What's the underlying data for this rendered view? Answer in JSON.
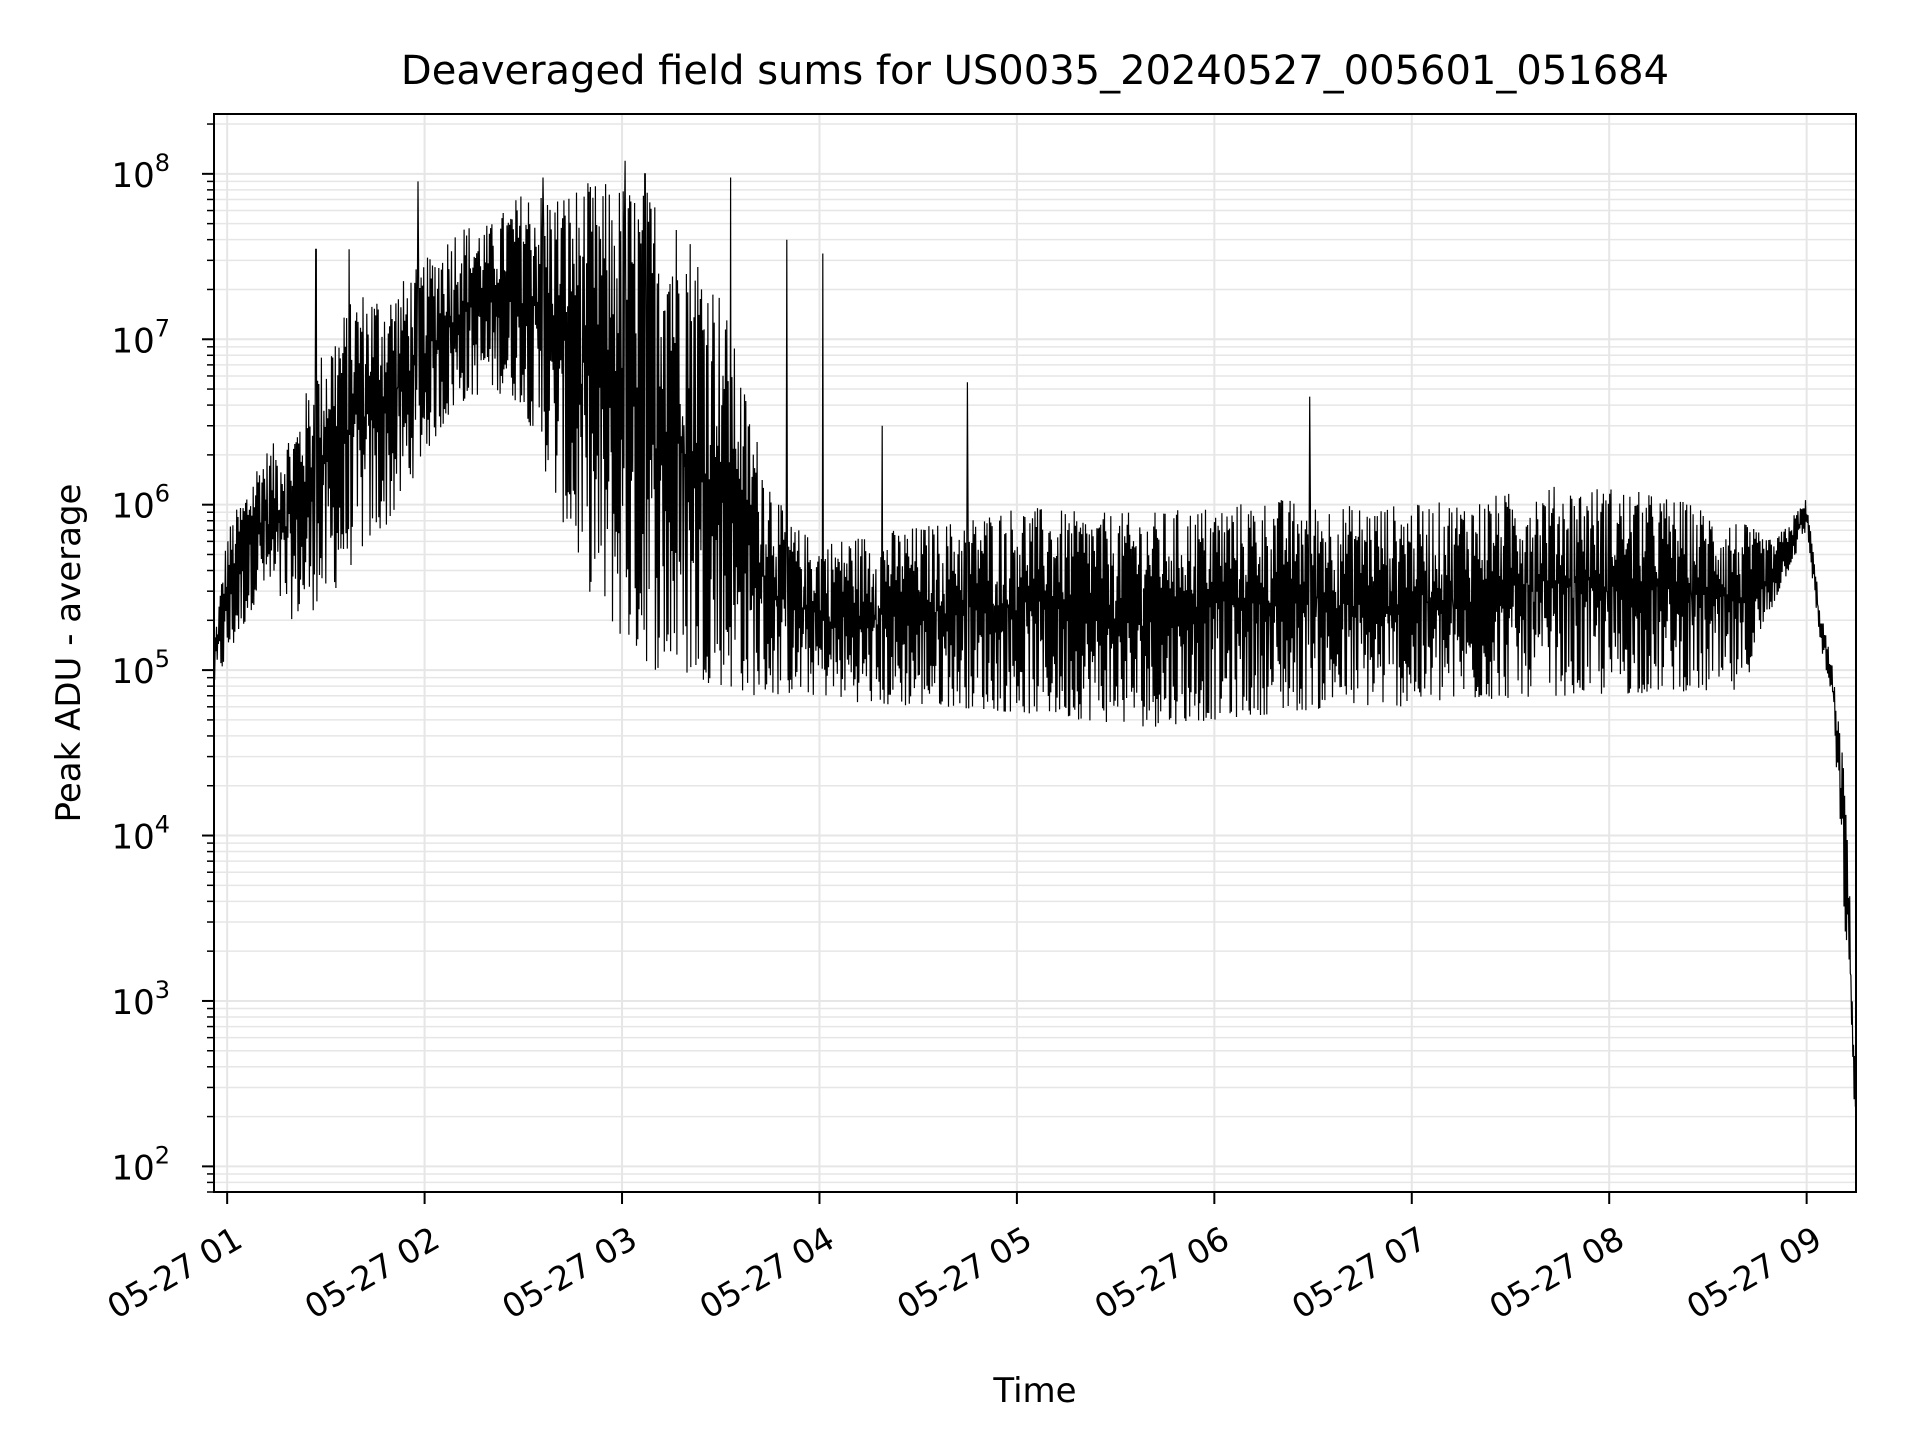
{
  "chart_data": {
    "type": "line",
    "title": "Deaveraged field sums for US0035_20240527_005601_051684",
    "xlabel": "Time",
    "ylabel": "Peak ADU - average",
    "yscale": "log",
    "ylim": [
      70,
      230000000
    ],
    "xlim": [
      "2024-05-27 00:56",
      "2024-05-27 09:15"
    ],
    "grid": true,
    "line_color": "#000000",
    "grid_color": "#e6e6e6",
    "x_ticks": [
      {
        "label": "05-27 01",
        "value": "2024-05-27 01:00"
      },
      {
        "label": "05-27 02",
        "value": "2024-05-27 02:00"
      },
      {
        "label": "05-27 03",
        "value": "2024-05-27 03:00"
      },
      {
        "label": "05-27 04",
        "value": "2024-05-27 04:00"
      },
      {
        "label": "05-27 05",
        "value": "2024-05-27 05:00"
      },
      {
        "label": "05-27 06",
        "value": "2024-05-27 06:00"
      },
      {
        "label": "05-27 07",
        "value": "2024-05-27 07:00"
      },
      {
        "label": "05-27 08",
        "value": "2024-05-27 08:00"
      },
      {
        "label": "05-27 09",
        "value": "2024-05-27 09:00"
      }
    ],
    "y_ticks": [
      {
        "mantissa": "10",
        "exponent": "2",
        "value": 100
      },
      {
        "mantissa": "10",
        "exponent": "3",
        "value": 1000
      },
      {
        "mantissa": "10",
        "exponent": "4",
        "value": 10000
      },
      {
        "mantissa": "10",
        "exponent": "5",
        "value": 100000
      },
      {
        "mantissa": "10",
        "exponent": "6",
        "value": 1000000
      },
      {
        "mantissa": "10",
        "exponent": "7",
        "value": 10000000
      },
      {
        "mantissa": "10",
        "exponent": "8",
        "value": 100000000
      }
    ],
    "series": [
      {
        "name": "",
        "envelope": [
          {
            "t": "2024-05-27 00:56",
            "low": 80000,
            "high": 150000
          },
          {
            "t": "2024-05-27 01:00",
            "low": 110000,
            "high": 700000
          },
          {
            "t": "2024-05-27 01:10",
            "low": 300000,
            "high": 2000000
          },
          {
            "t": "2024-05-27 01:20",
            "low": 200000,
            "high": 3000000
          },
          {
            "t": "2024-05-27 01:30",
            "low": 250000,
            "high": 10000000
          },
          {
            "t": "2024-05-27 01:40",
            "low": 500000,
            "high": 20000000
          },
          {
            "t": "2024-05-27 01:50",
            "low": 800000,
            "high": 20000000
          },
          {
            "t": "2024-05-27 02:00",
            "low": 2000000,
            "high": 30000000
          },
          {
            "t": "2024-05-27 02:10",
            "low": 4000000,
            "high": 50000000
          },
          {
            "t": "2024-05-27 02:20",
            "low": 5000000,
            "high": 50000000
          },
          {
            "t": "2024-05-27 02:30",
            "low": 4000000,
            "high": 80000000
          },
          {
            "t": "2024-05-27 02:40",
            "low": 1000000,
            "high": 80000000
          },
          {
            "t": "2024-05-27 02:50",
            "low": 300000,
            "high": 90000000
          },
          {
            "t": "2024-05-27 03:00",
            "low": 150000,
            "high": 90000000
          },
          {
            "t": "2024-05-27 03:10",
            "low": 100000,
            "high": 80000000
          },
          {
            "t": "2024-05-27 03:20",
            "low": 90000,
            "high": 50000000
          },
          {
            "t": "2024-05-27 03:30",
            "low": 80000,
            "high": 20000000
          },
          {
            "t": "2024-05-27 03:40",
            "low": 70000,
            "high": 3000000
          },
          {
            "t": "2024-05-27 03:50",
            "low": 70000,
            "high": 800000
          },
          {
            "t": "2024-05-27 04:00",
            "low": 70000,
            "high": 600000
          },
          {
            "t": "2024-05-27 04:20",
            "low": 60000,
            "high": 700000
          },
          {
            "t": "2024-05-27 04:40",
            "low": 60000,
            "high": 800000
          },
          {
            "t": "2024-05-27 05:00",
            "low": 55000,
            "high": 1000000
          },
          {
            "t": "2024-05-27 05:20",
            "low": 50000,
            "high": 900000
          },
          {
            "t": "2024-05-27 05:40",
            "low": 45000,
            "high": 900000
          },
          {
            "t": "2024-05-27 06:00",
            "low": 50000,
            "high": 1000000
          },
          {
            "t": "2024-05-27 06:20",
            "low": 55000,
            "high": 1100000
          },
          {
            "t": "2024-05-27 06:40",
            "low": 60000,
            "high": 1000000
          },
          {
            "t": "2024-05-27 07:00",
            "low": 60000,
            "high": 1000000
          },
          {
            "t": "2024-05-27 07:20",
            "low": 65000,
            "high": 1100000
          },
          {
            "t": "2024-05-27 07:40",
            "low": 70000,
            "high": 1300000
          },
          {
            "t": "2024-05-27 08:00",
            "low": 70000,
            "high": 1300000
          },
          {
            "t": "2024-05-27 08:20",
            "low": 75000,
            "high": 1100000
          },
          {
            "t": "2024-05-27 08:40",
            "low": 70000,
            "high": 800000
          },
          {
            "t": "2024-05-27 08:50",
            "low": 250000,
            "high": 600000
          },
          {
            "t": "2024-05-27 09:00",
            "low": 700000,
            "high": 1100000
          },
          {
            "t": "2024-05-27 09:04",
            "low": 150000,
            "high": 250000
          },
          {
            "t": "2024-05-27 09:08",
            "low": 60000,
            "high": 100000
          },
          {
            "t": "2024-05-27 09:12",
            "low": 2000,
            "high": 20000
          },
          {
            "t": "2024-05-27 09:15",
            "low": 150,
            "high": 300
          }
        ],
        "spikes": [
          {
            "t": "2024-05-27 01:27",
            "value": 35000000
          },
          {
            "t": "2024-05-27 01:37",
            "value": 35000000
          },
          {
            "t": "2024-05-27 01:58",
            "value": 90000000
          },
          {
            "t": "2024-05-27 02:36",
            "value": 95000000
          },
          {
            "t": "2024-05-27 03:01",
            "value": 120000000
          },
          {
            "t": "2024-05-27 03:07",
            "value": 100000000
          },
          {
            "t": "2024-05-27 03:33",
            "value": 95000000
          },
          {
            "t": "2024-05-27 03:50",
            "value": 40000000
          },
          {
            "t": "2024-05-27 04:01",
            "value": 33000000
          },
          {
            "t": "2024-05-27 04:19",
            "value": 3000000
          },
          {
            "t": "2024-05-27 04:45",
            "value": 5500000
          },
          {
            "t": "2024-05-27 06:29",
            "value": 4500000
          }
        ]
      }
    ]
  }
}
